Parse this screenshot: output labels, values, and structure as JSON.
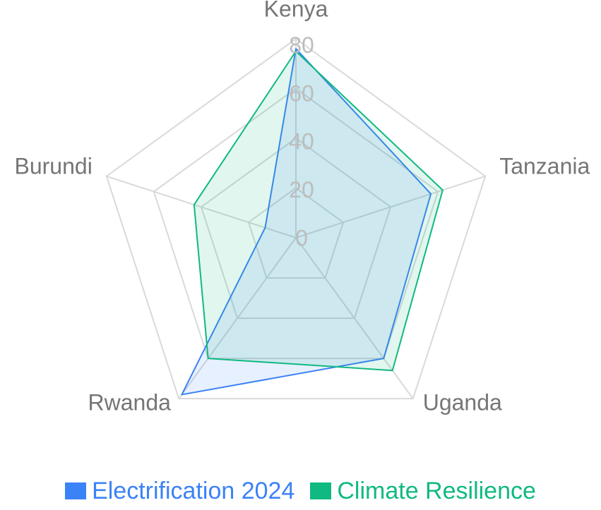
{
  "chart_data": {
    "type": "radar",
    "categories": [
      "Kenya",
      "Tanzania",
      "Uganda",
      "Rwanda",
      "Burundi"
    ],
    "ticks": [
      "0",
      "20",
      "40",
      "60",
      "80"
    ],
    "rmax": 80,
    "series": [
      {
        "name": "Electrification 2024",
        "color": "#3b82f6",
        "values": [
          76,
          57,
          60,
          78,
          13
        ]
      },
      {
        "name": "Climate Resilience",
        "color": "#10b981",
        "values": [
          75,
          62,
          66,
          60,
          43
        ]
      }
    ],
    "grid": true,
    "legend_position": "bottom"
  }
}
